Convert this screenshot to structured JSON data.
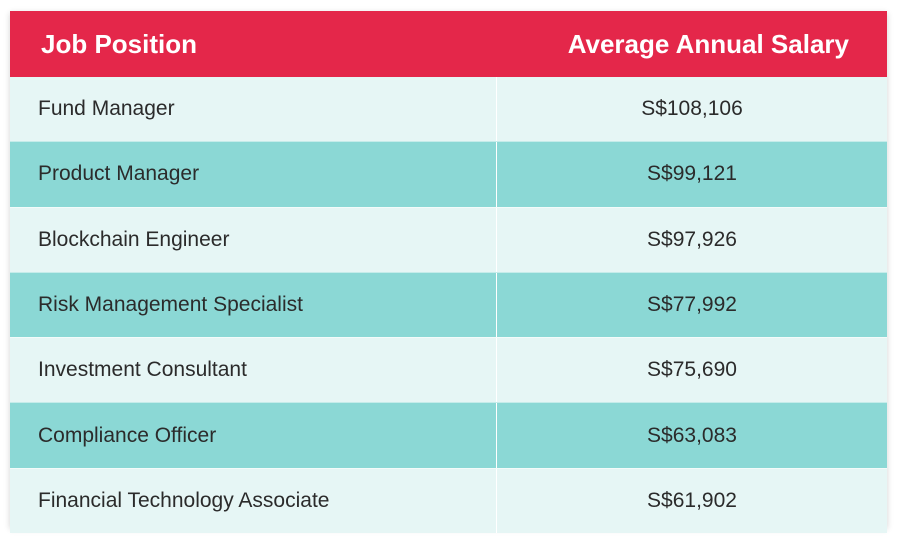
{
  "table": {
    "headers": {
      "position": "Job Position",
      "salary": "Average Annual Salary"
    },
    "rows": [
      {
        "position": "Fund Manager",
        "salary": "S$108,106"
      },
      {
        "position": "Product Manager",
        "salary": "S$99,121"
      },
      {
        "position": "Blockchain Engineer",
        "salary": "S$97,926"
      },
      {
        "position": "Risk Management Specialist",
        "salary": "S$77,992"
      },
      {
        "position": "Investment Consultant",
        "salary": "S$75,690"
      },
      {
        "position": "Compliance Officer",
        "salary": "S$63,083"
      },
      {
        "position": "Financial Technology Associate",
        "salary": "S$61,902"
      }
    ]
  },
  "colors": {
    "header_bg": "#e4274a",
    "row_light": "#e6f6f5",
    "row_teal": "#8bd8d5"
  },
  "chart_data": {
    "type": "table",
    "columns": [
      "Job Position",
      "Average Annual Salary"
    ],
    "rows": [
      [
        "Fund Manager",
        "S$108,106"
      ],
      [
        "Product Manager",
        "S$99,121"
      ],
      [
        "Blockchain Engineer",
        "S$97,926"
      ],
      [
        "Risk Management Specialist",
        "S$77,992"
      ],
      [
        "Investment Consultant",
        "S$75,690"
      ],
      [
        "Compliance Officer",
        "S$63,083"
      ],
      [
        "Financial Technology Associate",
        "S$61,902"
      ]
    ],
    "values": [
      108106,
      99121,
      97926,
      77992,
      75690,
      63083,
      61902
    ],
    "unit": "S$"
  }
}
